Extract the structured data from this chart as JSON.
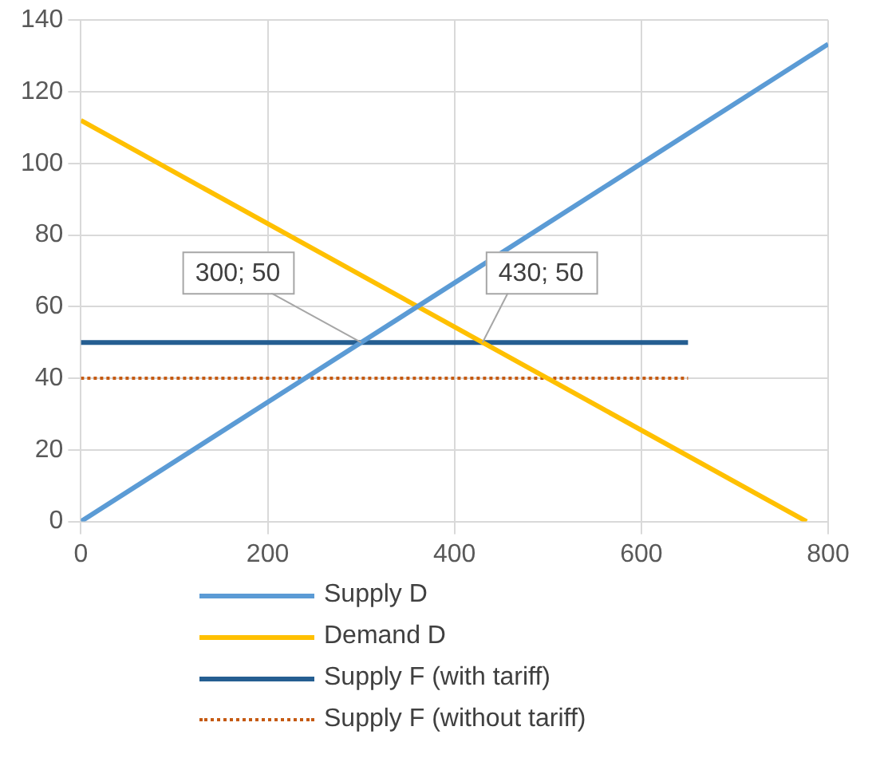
{
  "chart_data": {
    "type": "line",
    "xlim": [
      0,
      800
    ],
    "xticks": [
      0,
      200,
      400,
      600,
      800
    ],
    "ylim": [
      0,
      140
    ],
    "yticks": [
      0,
      20,
      40,
      60,
      80,
      100,
      120,
      140
    ],
    "grid": true,
    "legend": "bottom",
    "marker": "none",
    "series": [
      {
        "name": "Supply D",
        "color": "#5b9bd5",
        "x": [
          0,
          800
        ],
        "values": [
          0,
          133.3
        ],
        "line_style": "solid"
      },
      {
        "name": "Demand D",
        "color": "#ffc000",
        "x": [
          0,
          777
        ],
        "values": [
          112,
          0
        ],
        "line_style": "solid"
      },
      {
        "name": "Supply F (with tariff)",
        "color": "#255e91",
        "x": [
          0,
          650
        ],
        "values": [
          50,
          50
        ],
        "line_style": "solid"
      },
      {
        "name": "Supply F (without tariff)",
        "color": "#c55a11",
        "x": [
          0,
          650
        ],
        "values": [
          40,
          40
        ],
        "line_style": "dotted"
      }
    ],
    "annotations": [
      {
        "text": "300; 50",
        "x": 300,
        "y": 50
      },
      {
        "text": "430; 50",
        "x": 430,
        "y": 50
      }
    ]
  }
}
